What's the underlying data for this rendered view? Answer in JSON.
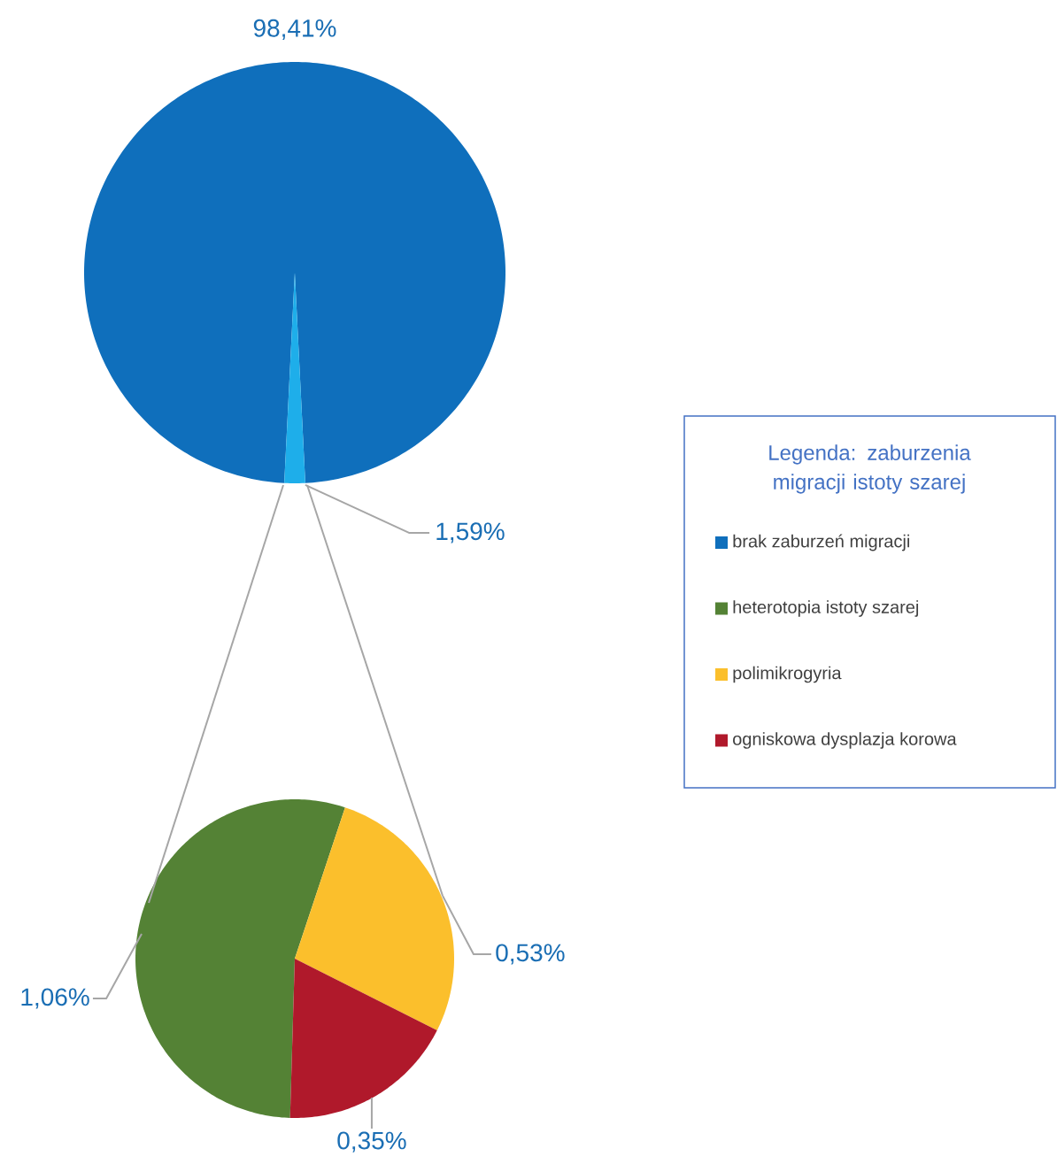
{
  "chart_data": [
    {
      "type": "pie",
      "legend_title": "Legenda: zaburzenia migracji istoty szarej",
      "legend": "right",
      "categories": [
        "brak zaburzeń migracji",
        null
      ],
      "values": [
        98.41,
        1.59
      ],
      "colors": [
        "#0f6fbc",
        "#1eaeea"
      ],
      "value_labels": [
        "98,41%",
        "1,59%"
      ]
    },
    {
      "type": "pie",
      "legend": "right",
      "categories": [
        "heterotopia istoty szarej",
        "polimikrogyria",
        "ogniskowa dysplazja korowa"
      ],
      "values": [
        1.06,
        0.53,
        0.35
      ],
      "colors": [
        "#548235",
        "#fbbf2c",
        "#b0192b"
      ],
      "value_labels": [
        "1,06%",
        "0,53%",
        "0,35%"
      ]
    }
  ]
}
